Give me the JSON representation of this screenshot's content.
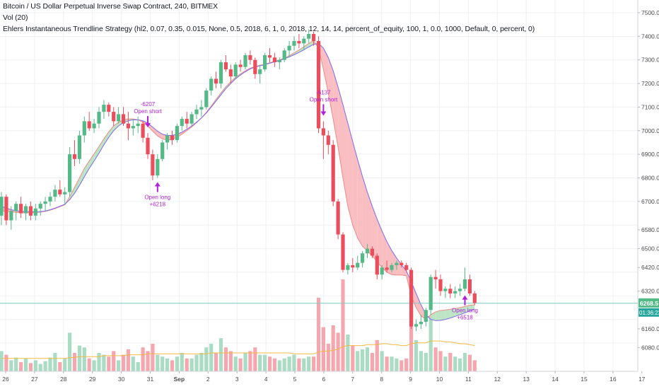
{
  "header": {
    "title": "Bitcoin / US Dollar Perpetual Inverse Swap Contract, 240, BITMEX",
    "volume_indicator": "Vol (20)",
    "strategy": "Ehlers Instantaneous Trendline Strategy (hl2, 0.07, 0.35, 0.015, None, 0.5, 2018, 6, 1, 0, 2018, 12, 14, 14, percent_of_equity, 100, 1, 0.0, 1000, Default, 0, percent, 0)"
  },
  "colors": {
    "up": "#53b987",
    "down": "#eb4d5c",
    "vol_up": "#a9dcc3",
    "vol_down": "#f5a6ae",
    "trend_up_fill": "#b6e2bf",
    "trend_down_fill": "#f8b7ba",
    "trend_line": "#7b68ee",
    "trigger_line": "#f08a86",
    "vol_ma": "#f5b942",
    "signal": "#b21fdc",
    "price_line": "#7fc8c0",
    "price_tag": "#53b987",
    "timer_tag": "#26a69a",
    "grid": "#eef0f3",
    "axis_text": "#4a4a4a"
  },
  "price_axis": {
    "ticks": [
      "7500.0",
      "7400.0",
      "7300.0",
      "7200.0",
      "7100.0",
      "7000.0",
      "6900.0",
      "6800.0",
      "6700.0",
      "6580.0",
      "6500.0",
      "6420.0",
      "6320.0",
      "6160.0",
      "6080.0"
    ],
    "last_price": "6268.5",
    "countdown": "01:36:22"
  },
  "time_axis": {
    "labels": [
      "26",
      "27",
      "28",
      "29",
      "30",
      "31",
      "Sep",
      "2",
      "3",
      "4",
      "5",
      "6",
      "7",
      "8",
      "9",
      "10",
      "11",
      "12",
      "13",
      "14",
      "15",
      "16",
      "17"
    ]
  },
  "signals": [
    {
      "text": "-6207",
      "label": "Open short",
      "type": "short"
    },
    {
      "text": "+6218",
      "label": "Open long",
      "type": "long"
    },
    {
      "text": "-6137",
      "label": "Open short",
      "type": "short"
    },
    {
      "text": "+6518",
      "label": "Open long",
      "type": "long"
    }
  ],
  "chart_data": {
    "type": "candlestick",
    "timeframe": "240",
    "ylim": [
      6040,
      7530
    ],
    "last_price": 6268.5,
    "start_date": "Aug 26",
    "candles_per_day": 6,
    "candles": [
      [
        6640,
        6740,
        6600,
        6720
      ],
      [
        6720,
        6730,
        6600,
        6620
      ],
      [
        6620,
        6680,
        6580,
        6660
      ],
      [
        6660,
        6700,
        6620,
        6690
      ],
      [
        6690,
        6720,
        6630,
        6650
      ],
      [
        6650,
        6690,
        6620,
        6680
      ],
      [
        6680,
        6700,
        6620,
        6640
      ],
      [
        6640,
        6690,
        6620,
        6670
      ],
      [
        6670,
        6700,
        6640,
        6690
      ],
      [
        6690,
        6720,
        6660,
        6700
      ],
      [
        6700,
        6740,
        6680,
        6720
      ],
      [
        6720,
        6770,
        6700,
        6750
      ],
      [
        6750,
        6790,
        6720,
        6730
      ],
      [
        6730,
        6760,
        6690,
        6740
      ],
      [
        6740,
        6930,
        6720,
        6900
      ],
      [
        6900,
        6960,
        6850,
        6880
      ],
      [
        6880,
        7000,
        6860,
        6980
      ],
      [
        6980,
        7060,
        6950,
        7040
      ],
      [
        7040,
        7080,
        7000,
        7010
      ],
      [
        7010,
        7050,
        6990,
        7030
      ],
      [
        7030,
        7100,
        7010,
        7080
      ],
      [
        7080,
        7130,
        7050,
        7110
      ],
      [
        7110,
        7120,
        7060,
        7080
      ],
      [
        7080,
        7100,
        7020,
        7040
      ],
      [
        7040,
        7100,
        7030,
        7070
      ],
      [
        7070,
        7100,
        7020,
        7030
      ],
      [
        7030,
        7080,
        6960,
        7010
      ],
      [
        7010,
        7050,
        6980,
        7020
      ],
      [
        7020,
        7060,
        6990,
        7030
      ],
      [
        7030,
        7040,
        6950,
        6970
      ],
      [
        6970,
        6990,
        6880,
        6900
      ],
      [
        6900,
        6920,
        6790,
        6810
      ],
      [
        6810,
        6900,
        6800,
        6880
      ],
      [
        6880,
        6960,
        6870,
        6950
      ],
      [
        6950,
        6990,
        6920,
        6980
      ],
      [
        6980,
        7000,
        6940,
        6960
      ],
      [
        6960,
        7030,
        6950,
        7020
      ],
      [
        7020,
        7060,
        7000,
        7050
      ],
      [
        7050,
        7080,
        7010,
        7030
      ],
      [
        7030,
        7080,
        7020,
        7070
      ],
      [
        7070,
        7110,
        7050,
        7090
      ],
      [
        7090,
        7130,
        7060,
        7100
      ],
      [
        7100,
        7180,
        7090,
        7170
      ],
      [
        7170,
        7230,
        7150,
        7220
      ],
      [
        7220,
        7250,
        7180,
        7200
      ],
      [
        7200,
        7300,
        7180,
        7290
      ],
      [
        7290,
        7320,
        7250,
        7260
      ],
      [
        7260,
        7280,
        7200,
        7230
      ],
      [
        7230,
        7290,
        7220,
        7280
      ],
      [
        7280,
        7300,
        7250,
        7270
      ],
      [
        7270,
        7330,
        7260,
        7320
      ],
      [
        7320,
        7340,
        7280,
        7300
      ],
      [
        7300,
        7310,
        7220,
        7240
      ],
      [
        7240,
        7280,
        7200,
        7260
      ],
      [
        7260,
        7330,
        7250,
        7320
      ],
      [
        7320,
        7350,
        7290,
        7310
      ],
      [
        7310,
        7330,
        7270,
        7290
      ],
      [
        7290,
        7310,
        7260,
        7300
      ],
      [
        7300,
        7350,
        7290,
        7340
      ],
      [
        7340,
        7380,
        7310,
        7360
      ],
      [
        7360,
        7400,
        7340,
        7380
      ],
      [
        7380,
        7410,
        7350,
        7370
      ],
      [
        7370,
        7400,
        7340,
        7390
      ],
      [
        7390,
        7430,
        7370,
        7410
      ],
      [
        7410,
        7420,
        7360,
        7380
      ],
      [
        7380,
        7400,
        6990,
        7010
      ],
      [
        7010,
        7040,
        6880,
        6980
      ],
      [
        6980,
        7000,
        6900,
        6940
      ],
      [
        6940,
        6960,
        6680,
        6700
      ],
      [
        6700,
        6710,
        6540,
        6560
      ],
      [
        6560,
        6570,
        6400,
        6410
      ],
      [
        6410,
        6440,
        6390,
        6430
      ],
      [
        6430,
        6460,
        6400,
        6420
      ],
      [
        6420,
        6470,
        6410,
        6440
      ],
      [
        6440,
        6490,
        6420,
        6480
      ],
      [
        6480,
        6520,
        6460,
        6500
      ],
      [
        6500,
        6510,
        6460,
        6470
      ],
      [
        6470,
        6480,
        6370,
        6390
      ],
      [
        6390,
        6430,
        6370,
        6420
      ],
      [
        6420,
        6450,
        6400,
        6410
      ],
      [
        6410,
        6440,
        6400,
        6430
      ],
      [
        6430,
        6450,
        6410,
        6440
      ],
      [
        6440,
        6450,
        6420,
        6430
      ],
      [
        6430,
        6440,
        6400,
        6410
      ],
      [
        6410,
        6420,
        6160,
        6170
      ],
      [
        6170,
        6200,
        6150,
        6180
      ],
      [
        6180,
        6220,
        6160,
        6190
      ],
      [
        6190,
        6250,
        6170,
        6240
      ],
      [
        6240,
        6390,
        6220,
        6380
      ],
      [
        6380,
        6410,
        6330,
        6370
      ],
      [
        6370,
        6390,
        6300,
        6320
      ],
      [
        6320,
        6340,
        6290,
        6330
      ],
      [
        6330,
        6350,
        6290,
        6310
      ],
      [
        6310,
        6340,
        6290,
        6320
      ],
      [
        6320,
        6350,
        6300,
        6330
      ],
      [
        6330,
        6420,
        6320,
        6370
      ],
      [
        6370,
        6390,
        6300,
        6310
      ],
      [
        6310,
        6320,
        6260,
        6270
      ]
    ],
    "volume": [
      22,
      18,
      12,
      15,
      10,
      14,
      9,
      12,
      8,
      11,
      15,
      20,
      10,
      14,
      42,
      20,
      28,
      26,
      14,
      12,
      20,
      18,
      16,
      22,
      12,
      18,
      24,
      16,
      10,
      26,
      22,
      30,
      18,
      16,
      14,
      12,
      16,
      20,
      14,
      14,
      18,
      20,
      26,
      30,
      20,
      36,
      26,
      22,
      16,
      14,
      20,
      22,
      26,
      18,
      18,
      16,
      14,
      12,
      14,
      16,
      18,
      14,
      14,
      16,
      16,
      80,
      48,
      30,
      50,
      42,
      100,
      40,
      28,
      22,
      24,
      26,
      20,
      34,
      22,
      16,
      16,
      14,
      12,
      14,
      80,
      34,
      22,
      20,
      60,
      26,
      22,
      16,
      20,
      16,
      14,
      20,
      18,
      12
    ],
    "volume_ma": [
      14,
      14,
      14,
      14,
      14,
      14,
      14,
      14,
      14,
      14,
      14,
      14,
      14,
      14,
      15,
      15,
      16,
      16,
      16,
      16,
      16,
      17,
      17,
      17,
      17,
      17,
      18,
      18,
      18,
      18,
      19,
      19,
      19,
      19,
      19,
      19,
      19,
      19,
      19,
      19,
      19,
      19,
      19,
      20,
      20,
      20,
      20,
      20,
      20,
      20,
      20,
      20,
      20,
      20,
      20,
      20,
      20,
      20,
      20,
      20,
      19,
      19,
      19,
      19,
      19,
      21,
      22,
      22,
      23,
      24,
      27,
      28,
      28,
      28,
      28,
      29,
      29,
      29,
      30,
      30,
      29,
      29,
      28,
      28,
      30,
      31,
      31,
      31,
      33,
      33,
      33,
      32,
      32,
      31,
      30,
      30,
      29,
      28
    ],
    "series": [
      {
        "name": "Trend",
        "values": [
          6680,
          6672,
          6665,
          6661,
          6658,
          6658,
          6656,
          6656,
          6657,
          6660,
          6665,
          6672,
          6680,
          6688,
          6708,
          6735,
          6768,
          6805,
          6840,
          6872,
          6905,
          6940,
          6972,
          7000,
          7020,
          7034,
          7042,
          7046,
          7046,
          7042,
          7032,
          7015,
          6998,
          6985,
          6980,
          6980,
          6985,
          6994,
          7006,
          7020,
          7036,
          7054,
          7075,
          7100,
          7126,
          7152,
          7178,
          7200,
          7220,
          7236,
          7250,
          7262,
          7270,
          7275,
          7280,
          7286,
          7292,
          7298,
          7305,
          7313,
          7322,
          7332,
          7343,
          7355,
          7366,
          7370,
          7350,
          7310,
          7254,
          7185,
          7110,
          7032,
          6954,
          6878,
          6806,
          6740,
          6680,
          6625,
          6575,
          6530,
          6492,
          6460,
          6432,
          6405,
          6360,
          6310,
          6262,
          6222,
          6200,
          6195,
          6196,
          6200,
          6206,
          6213,
          6220,
          6228,
          6236,
          6244
        ]
      },
      {
        "name": "Trigger",
        "values": [
          6660,
          6658,
          6656,
          6654,
          6652,
          6652,
          6652,
          6653,
          6655,
          6658,
          6663,
          6670,
          6678,
          6686,
          6720,
          6760,
          6800,
          6840,
          6872,
          6902,
          6933,
          6965,
          6995,
          7020,
          7036,
          7046,
          7050,
          7050,
          7046,
          7036,
          7020,
          6998,
          6978,
          6965,
          6960,
          6963,
          6972,
          6985,
          7000,
          7016,
          7034,
          7054,
          7078,
          7105,
          7133,
          7160,
          7186,
          7207,
          7226,
          7241,
          7254,
          7265,
          7272,
          7277,
          7282,
          7288,
          7294,
          7300,
          7308,
          7318,
          7330,
          7342,
          7356,
          7370,
          7382,
          7350,
          7260,
          7160,
          7050,
          6930,
          6800,
          6680,
          6600,
          6545,
          6510,
          6490,
          6470,
          6445,
          6420,
          6400,
          6390,
          6388,
          6388,
          6385,
          6300,
          6250,
          6215,
          6200,
          6220,
          6232,
          6238,
          6240,
          6243,
          6246,
          6250,
          6255,
          6260,
          6262
        ]
      }
    ]
  }
}
